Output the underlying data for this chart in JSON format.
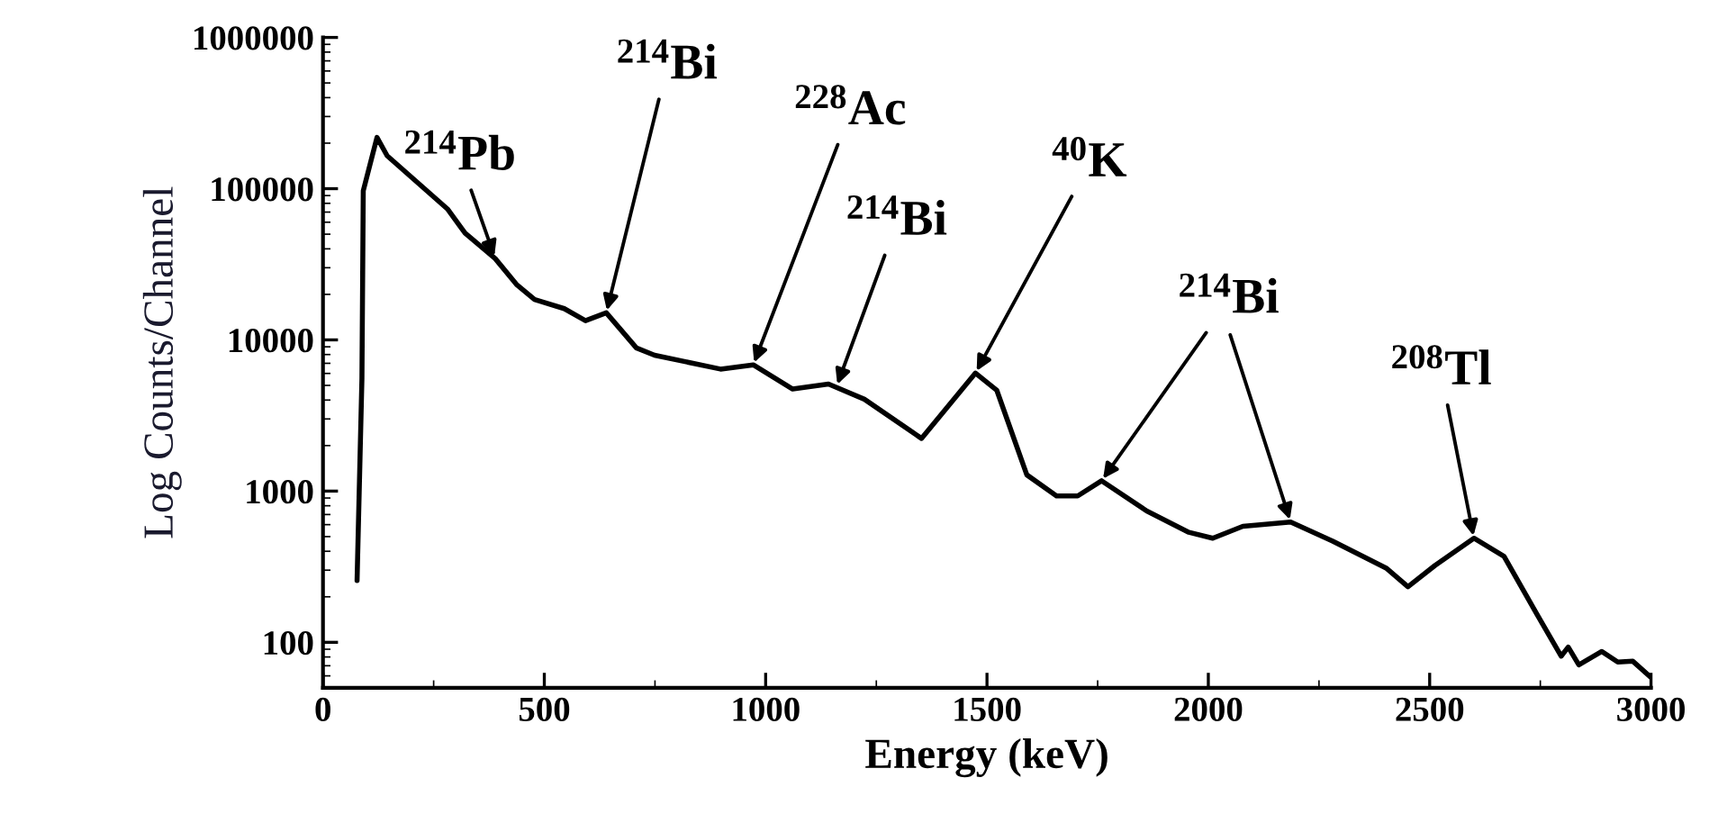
{
  "chart_data": {
    "type": "line",
    "xlabel": "Energy (keV)",
    "ylabel": "Log Counts/Channel",
    "log": "y",
    "xlim": [
      0,
      3000
    ],
    "xticks": [
      0,
      500,
      1000,
      1500,
      2000,
      2500,
      3000
    ],
    "ylim": [
      50,
      1000000
    ],
    "yticks": [
      100,
      1000,
      10000,
      100000,
      1000000
    ],
    "grid": false,
    "marker": "none",
    "line_style": "solid",
    "series": [
      {
        "color": "#000000",
        "x": [
          77,
          88,
          91,
          122,
          145,
          281,
          321,
          389,
          437,
          478,
          545,
          593,
          640,
          708,
          749,
          898,
          972,
          1061,
          1142,
          1223,
          1352,
          1474,
          1522,
          1590,
          1657,
          1705,
          1759,
          1861,
          1956,
          2010,
          2078,
          2186,
          2281,
          2403,
          2451,
          2512,
          2600,
          2668,
          2742,
          2797,
          2813,
          2837,
          2889,
          2925,
          2959,
          2999
        ],
        "values": [
          256,
          5580,
          96800,
          218000,
          165000,
          73500,
          50800,
          34500,
          23300,
          18500,
          16100,
          13400,
          15100,
          8850,
          7920,
          6410,
          6840,
          4730,
          5100,
          4050,
          2230,
          6030,
          4650,
          1280,
          929,
          929,
          1170,
          738,
          534,
          488,
          585,
          625,
          466,
          308,
          233,
          322,
          488,
          370,
          154,
          81,
          93,
          71,
          87,
          74,
          75,
          59
        ]
      }
    ],
    "annotations": [
      {
        "text": "$^{214}$Pb",
        "x": 389,
        "y": 34500
      },
      {
        "text": "$^{214}$Bi",
        "x": 640,
        "y": 15100
      },
      {
        "text": "$^{228}$Ac",
        "x": 972,
        "y": 6840
      },
      {
        "text": "$^{214}$Bi",
        "x": 1160,
        "y": 4900
      },
      {
        "text": "$^{40}$K",
        "x": 1474,
        "y": 6030
      },
      {
        "text": "$^{214}$Bi",
        "x": 1759,
        "y": 1170
      },
      {
        "text": "$^{208}$Tl",
        "x": 2600,
        "y": 488
      }
    ]
  }
}
